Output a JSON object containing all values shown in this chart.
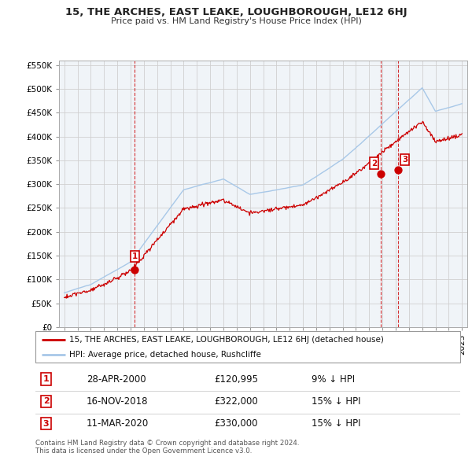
{
  "title": "15, THE ARCHES, EAST LEAKE, LOUGHBOROUGH, LE12 6HJ",
  "subtitle": "Price paid vs. HM Land Registry's House Price Index (HPI)",
  "red_label": "15, THE ARCHES, EAST LEAKE, LOUGHBOROUGH, LE12 6HJ (detached house)",
  "blue_label": "HPI: Average price, detached house, Rushcliffe",
  "sales": [
    {
      "num": 1,
      "date": "28-APR-2000",
      "price": 120995,
      "pct": "9% ↓ HPI",
      "x": 2000.32
    },
    {
      "num": 2,
      "date": "16-NOV-2018",
      "price": 322000,
      "pct": "15% ↓ HPI",
      "x": 2018.88
    },
    {
      "num": 3,
      "date": "11-MAR-2020",
      "price": 330000,
      "pct": "15% ↓ HPI",
      "x": 2020.19
    }
  ],
  "footer": "Contains HM Land Registry data © Crown copyright and database right 2024.\nThis data is licensed under the Open Government Licence v3.0.",
  "ylim": [
    0,
    560000
  ],
  "xlim": [
    1994.6,
    2025.4
  ],
  "yticks": [
    0,
    50000,
    100000,
    150000,
    200000,
    250000,
    300000,
    350000,
    400000,
    450000,
    500000,
    550000
  ],
  "background_color": "#ffffff",
  "grid_color": "#d0d0d0",
  "hpi_color": "#a8c8e8",
  "price_color": "#cc0000",
  "chart_bg": "#f0f4f8"
}
